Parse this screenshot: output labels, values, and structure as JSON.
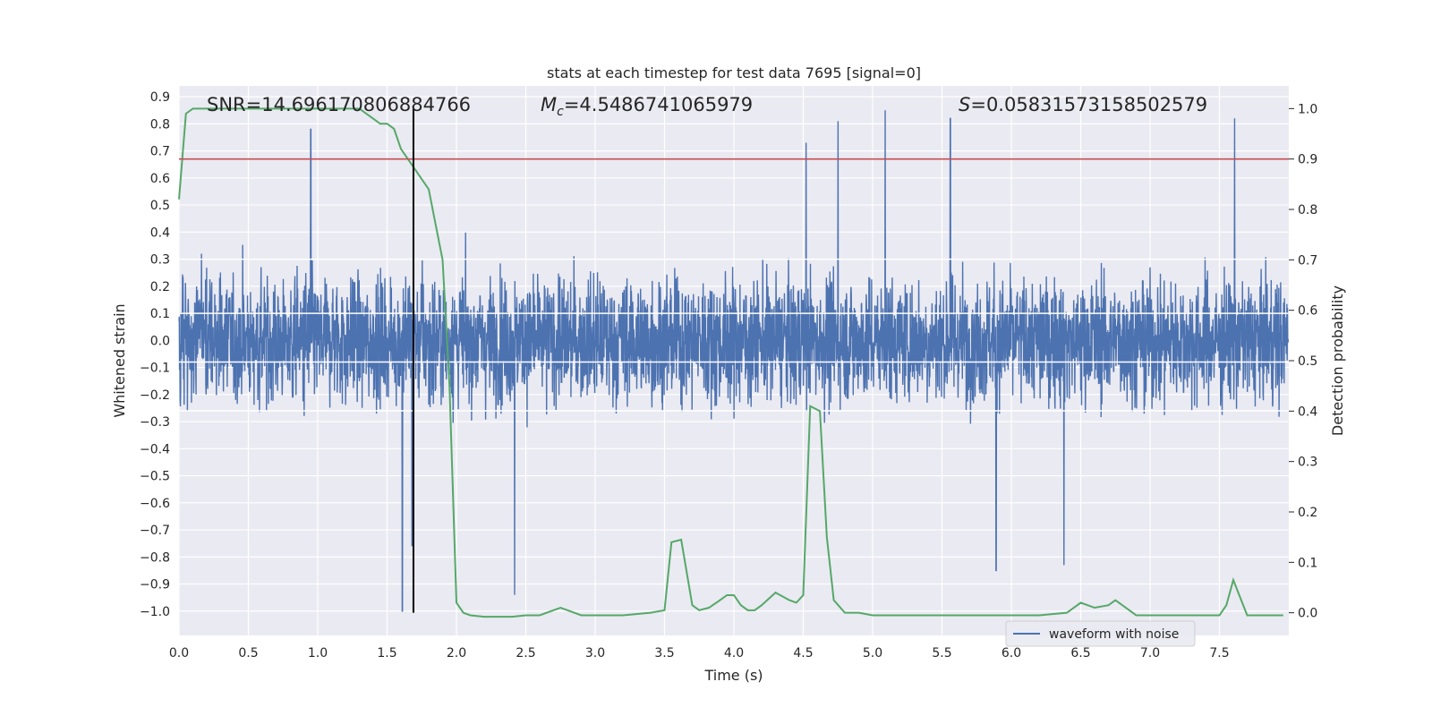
{
  "chart_data": {
    "type": "line",
    "title": "stats at each timestep for test data 7695 [signal=0]",
    "xlabel": "Time (s)",
    "ylabel_left": "Whitened strain",
    "ylabel_right": "Detection probability",
    "xlim": [
      0.0,
      8.0
    ],
    "ylim_left": [
      -1.09,
      0.94
    ],
    "ylim_right": [
      -0.045,
      1.045
    ],
    "x_ticks": [
      "0.0",
      "0.5",
      "1.0",
      "1.5",
      "2.0",
      "2.5",
      "3.0",
      "3.5",
      "4.0",
      "4.5",
      "5.0",
      "5.5",
      "6.0",
      "6.5",
      "7.0",
      "7.5"
    ],
    "y_left_ticks": [
      "0.9",
      "0.8",
      "0.7",
      "0.6",
      "0.5",
      "0.4",
      "0.3",
      "0.2",
      "0.1",
      "0.0",
      "−0.1",
      "−0.2",
      "−0.3",
      "−0.4",
      "−0.5",
      "−0.6",
      "−0.7",
      "−0.8",
      "−0.9",
      "−1.0"
    ],
    "y_right_ticks": [
      "1.0",
      "0.9",
      "0.8",
      "0.7",
      "0.6",
      "0.5",
      "0.4",
      "0.3",
      "0.2",
      "0.1",
      "0.0"
    ],
    "grid": true,
    "legend_position": "lower-right",
    "annotations": {
      "snr": "SNR=14.696170806884766",
      "mc_symbol": "M",
      "mc_sub": "c",
      "mc_value": "=4.5486741065979",
      "s_symbol": "S",
      "s_value": "=0.05831573158502579"
    },
    "series": [
      {
        "name": "waveform with noise",
        "axis": "left",
        "color": "#4c72b0",
        "x_range": [
          0.0,
          7.996
        ],
        "envelope_peak_high": 0.85,
        "envelope_peak_low": -1.0,
        "notable_spikes": [
          {
            "x": 0.95,
            "y": 0.78
          },
          {
            "x": 4.52,
            "y": 0.73
          },
          {
            "x": 4.75,
            "y": 0.81
          },
          {
            "x": 5.09,
            "y": 0.85
          },
          {
            "x": 5.56,
            "y": 0.82
          },
          {
            "x": 7.61,
            "y": 0.82
          },
          {
            "x": 1.61,
            "y": -1.0
          },
          {
            "x": 1.68,
            "y": -0.76
          },
          {
            "x": 2.42,
            "y": -0.94
          },
          {
            "x": 5.89,
            "y": -0.85
          },
          {
            "x": 6.38,
            "y": -0.83
          }
        ]
      },
      {
        "name": "",
        "axis": "right",
        "color": "#55a868",
        "x": [
          0.0,
          0.05,
          0.1,
          0.2,
          0.4,
          0.6,
          0.8,
          1.0,
          1.2,
          1.3,
          1.4,
          1.45,
          1.5,
          1.55,
          1.6,
          1.65,
          1.7,
          1.8,
          1.9,
          1.95,
          2.0,
          2.05,
          2.1,
          2.2,
          2.3,
          2.4,
          2.5,
          2.6,
          2.7,
          2.75,
          2.8,
          2.9,
          3.0,
          3.2,
          3.4,
          3.5,
          3.55,
          3.62,
          3.7,
          3.75,
          3.82,
          3.9,
          3.95,
          4.0,
          4.05,
          4.1,
          4.15,
          4.2,
          4.3,
          4.4,
          4.45,
          4.5,
          4.55,
          4.62,
          4.67,
          4.72,
          4.8,
          4.9,
          5.0,
          5.2,
          5.5,
          5.8,
          6.0,
          6.2,
          6.4,
          6.5,
          6.6,
          6.7,
          6.75,
          6.8,
          6.9,
          7.0,
          7.2,
          7.4,
          7.5,
          7.55,
          7.6,
          7.65,
          7.7,
          7.8,
          7.96
        ],
        "values": [
          0.82,
          0.99,
          1.0,
          1.0,
          1.0,
          1.0,
          1.0,
          1.0,
          1.0,
          1.0,
          0.98,
          0.97,
          0.97,
          0.96,
          0.92,
          0.9,
          0.88,
          0.84,
          0.7,
          0.45,
          0.02,
          0.0,
          -0.005,
          -0.008,
          -0.008,
          -0.008,
          -0.005,
          -0.005,
          0.005,
          0.01,
          0.005,
          -0.005,
          -0.005,
          -0.005,
          0.0,
          0.005,
          0.14,
          0.145,
          0.015,
          0.005,
          0.01,
          0.025,
          0.035,
          0.035,
          0.015,
          0.005,
          0.005,
          0.015,
          0.04,
          0.025,
          0.02,
          0.035,
          0.41,
          0.4,
          0.15,
          0.025,
          0.0,
          0.0,
          -0.005,
          -0.005,
          -0.005,
          -0.005,
          -0.005,
          -0.005,
          0.0,
          0.02,
          0.01,
          0.015,
          0.025,
          0.015,
          -0.005,
          -0.005,
          -0.005,
          -0.005,
          -0.005,
          0.015,
          0.065,
          0.03,
          -0.005,
          -0.005,
          -0.005
        ]
      }
    ],
    "reference_lines": [
      {
        "orientation": "horizontal",
        "axis": "right",
        "value": 0.9,
        "color": "#c44e52"
      },
      {
        "orientation": "vertical",
        "x": 1.69,
        "color": "#000000"
      }
    ]
  }
}
